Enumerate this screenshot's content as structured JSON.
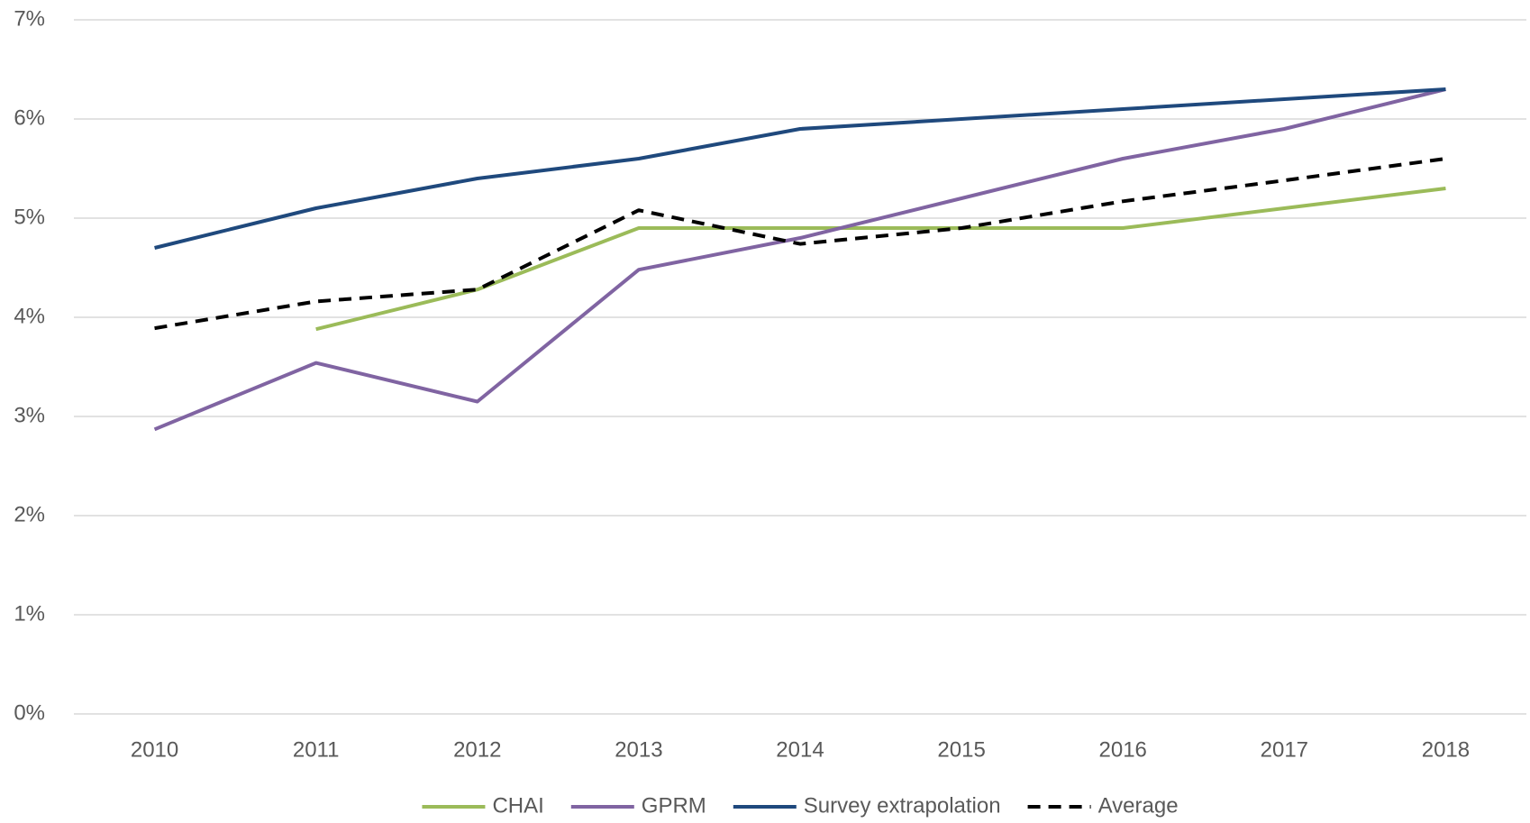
{
  "chart_data": {
    "type": "line",
    "categories": [
      "2010",
      "2011",
      "2012",
      "2013",
      "2014",
      "2015",
      "2016",
      "2017",
      "2018"
    ],
    "series": [
      {
        "name": "CHAI",
        "color": "#9bbb59",
        "values": [
          null,
          3.88,
          4.28,
          4.9,
          4.9,
          4.9,
          4.9,
          5.1,
          5.3
        ]
      },
      {
        "name": "GPRM",
        "color": "#8064a2",
        "values": [
          2.87,
          3.54,
          3.15,
          4.48,
          4.8,
          5.2,
          5.6,
          5.9,
          6.3
        ]
      },
      {
        "name": "Survey extrapolation",
        "color": "#1f497d",
        "values": [
          4.7,
          5.1,
          5.4,
          5.6,
          5.9,
          6.0,
          6.1,
          6.2,
          6.3
        ]
      },
      {
        "name": "Average",
        "color": "#000000",
        "dashed": true,
        "values": [
          3.89,
          4.16,
          4.28,
          5.08,
          4.74,
          4.9,
          5.17,
          5.38,
          5.6
        ]
      }
    ],
    "ylim": [
      0,
      7
    ],
    "yticks": [
      {
        "value": 0,
        "label": "0%"
      },
      {
        "value": 1,
        "label": "1%"
      },
      {
        "value": 2,
        "label": "2%"
      },
      {
        "value": 3,
        "label": "3%"
      },
      {
        "value": 4,
        "label": "4%"
      },
      {
        "value": 5,
        "label": "5%"
      },
      {
        "value": 6,
        "label": "6%"
      },
      {
        "value": 7,
        "label": "7%"
      }
    ],
    "grid": true,
    "legend": "bottom"
  }
}
